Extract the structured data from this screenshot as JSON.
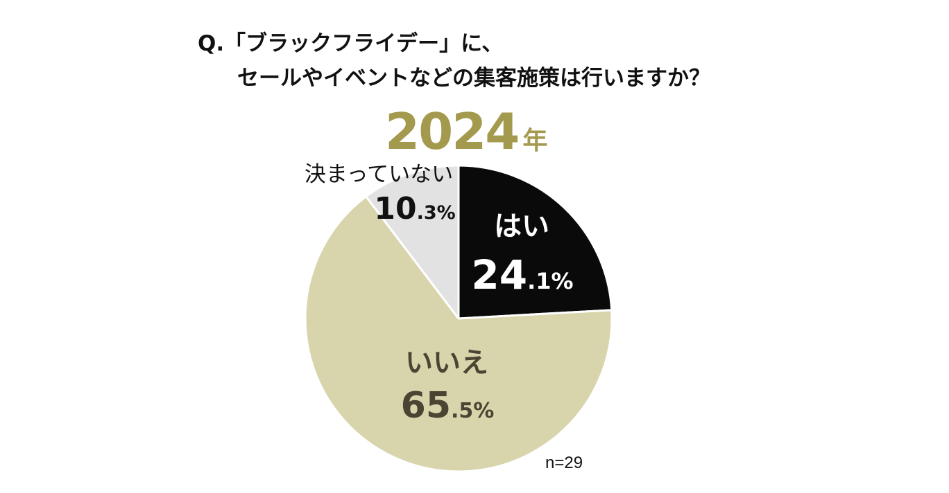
{
  "question": {
    "line1": "Q.「ブラックフライデー」に、",
    "line2": "セールやイベントなどの集客施策は行いますか？"
  },
  "year": {
    "number": "2024",
    "unit": "年"
  },
  "sample_size": "n=29",
  "colors": {
    "yes": "#0a0a0a",
    "no": "#d8d4ac",
    "undecided": "#e2e2e2",
    "year": "#a49a4e",
    "no_text": "#4a4533"
  },
  "chart_data": {
    "type": "pie",
    "start": "12 o'clock",
    "direction": "clockwise",
    "slices": [
      {
        "key": "yes",
        "label": "はい",
        "value": 24.1,
        "int": "24",
        "dec": ".1%"
      },
      {
        "key": "no",
        "label": "いいえ",
        "value": 65.5,
        "int": "65",
        "dec": ".5%"
      },
      {
        "key": "undecided",
        "label": "決まっていない",
        "value": 10.3,
        "int": "10",
        "dec": ".3%"
      }
    ]
  }
}
